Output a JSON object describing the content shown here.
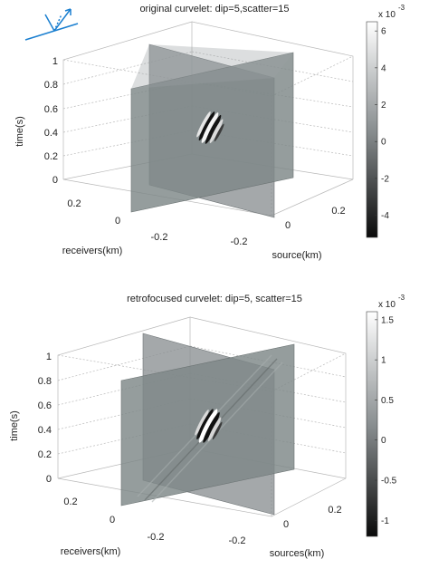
{
  "chart_data": [
    {
      "type": "3d-slice-volume",
      "title": "original curvelet: dip=5,scatter=15",
      "zlabel": "time(s)",
      "xlabel": "receivers(km)",
      "ylabel": "source(km)",
      "z_ticks": [
        "0",
        "0.2",
        "0.4",
        "0.6",
        "0.8",
        "1"
      ],
      "x_ticks": [
        "0.2",
        "0",
        "-0.2"
      ],
      "y_ticks": [
        "-0.2",
        "0",
        "0.2"
      ],
      "colorbar": {
        "multiplier": "x 10",
        "exponent": "-3",
        "ticks": [
          "6",
          "4",
          "2",
          "0",
          "-2",
          "-4"
        ],
        "range": [
          -5.2,
          6.5
        ]
      }
    },
    {
      "type": "3d-slice-volume",
      "title": "retrofocused curvelet: dip=5, scatter=15",
      "zlabel": "time(s)",
      "xlabel": "receivers(km)",
      "ylabel": "sources(km)",
      "z_ticks": [
        "0",
        "0.2",
        "0.4",
        "0.6",
        "0.8",
        "1"
      ],
      "x_ticks": [
        "0.2",
        "0",
        "-0.2"
      ],
      "y_ticks": [
        "-0.2",
        "0",
        "0.2"
      ],
      "colorbar": {
        "multiplier": "x 10",
        "exponent": "-3",
        "ticks": [
          "1.5",
          "1",
          "0.5",
          "0",
          "-0.5",
          "-1"
        ],
        "range": [
          -1.2,
          1.6
        ]
      }
    }
  ]
}
